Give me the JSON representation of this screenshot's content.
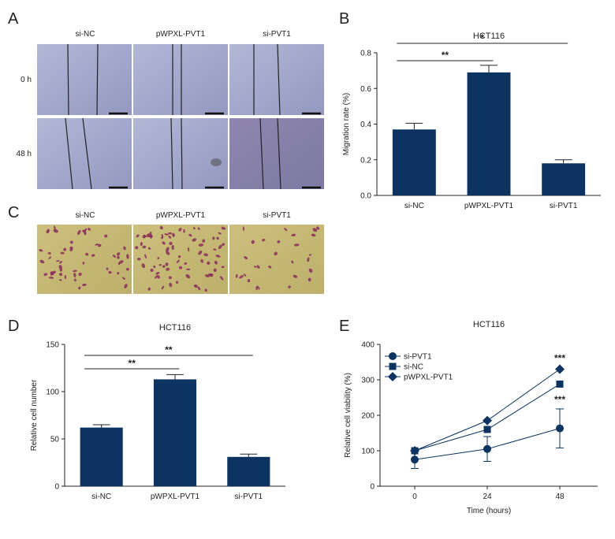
{
  "panel_labels": [
    "A",
    "B",
    "C",
    "D",
    "E"
  ],
  "panel_a": {
    "columns": [
      "si-NC",
      "pWPXL-PVT1",
      "si-PVT1"
    ],
    "rows": [
      "0 h",
      "48 h"
    ]
  },
  "panel_c": {
    "columns": [
      "si-NC",
      "pWPXL-PVT1",
      "si-PVT1"
    ]
  },
  "colors": {
    "bar": "#0d3360",
    "marker": "#0d3360",
    "micro_wound": "#9aa0c4",
    "micro_transwell": "#c4b877",
    "cell_stain": "#8a2d5c"
  },
  "chart_data": [
    {
      "type": "bar",
      "panel": "B",
      "title": "HCT116",
      "categories": [
        "si-NC",
        "pWPXL-PVT1",
        "si-PVT1"
      ],
      "values": [
        0.37,
        0.69,
        0.18
      ],
      "errors": [
        0.035,
        0.04,
        0.02
      ],
      "ylabel": "Migration rate (%)",
      "ylim": [
        0,
        0.8
      ],
      "yticks": [
        "0.0",
        "0.2",
        "0.4",
        "0.6",
        "0.8"
      ],
      "significance": [
        {
          "from": 0,
          "to": 1,
          "label": "**"
        },
        {
          "from": 0,
          "to": 2,
          "label": "*"
        }
      ]
    },
    {
      "type": "bar",
      "panel": "D",
      "title": "HCT116",
      "categories": [
        "si-NC",
        "pWPXL-PVT1",
        "si-PVT1"
      ],
      "values": [
        62,
        113,
        31
      ],
      "errors": [
        3,
        5,
        3
      ],
      "ylabel": "Relative cell number",
      "ylim": [
        0,
        150
      ],
      "yticks": [
        "0",
        "50",
        "100",
        "150"
      ],
      "significance": [
        {
          "from": 0,
          "to": 1,
          "label": "**"
        },
        {
          "from": 0,
          "to": 2,
          "label": "**"
        }
      ]
    },
    {
      "type": "line",
      "panel": "E",
      "title": "HCT116",
      "x": [
        0,
        24,
        48
      ],
      "xticks": [
        "0",
        "24",
        "48"
      ],
      "xlabel": "Time (hours)",
      "ylabel": "Relative cell viability (%)",
      "ylim": [
        0,
        400
      ],
      "yticks": [
        "0",
        "100",
        "200",
        "300",
        "400"
      ],
      "series": [
        {
          "name": "si-PVT1",
          "marker": "circle",
          "values": [
            75,
            105,
            163
          ],
          "errors": [
            25,
            35,
            55
          ]
        },
        {
          "name": "si-NC",
          "marker": "square",
          "values": [
            100,
            160,
            288
          ],
          "errors": [
            0,
            0,
            0
          ]
        },
        {
          "name": "pWPXL-PVT1",
          "marker": "diamond",
          "values": [
            100,
            185,
            330
          ],
          "errors": [
            0,
            0,
            0
          ]
        }
      ],
      "annotations": [
        "***",
        "***"
      ],
      "legend": "top-left"
    }
  ]
}
